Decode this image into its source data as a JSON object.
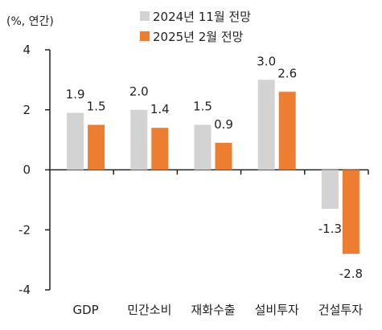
{
  "chart_data": {
    "type": "bar",
    "unit_label": "(%, 연간)",
    "categories": [
      "GDP",
      "민간소비",
      "재화수출",
      "설비투자",
      "건설투자"
    ],
    "series": [
      {
        "name": "2024년 11월 전망",
        "color": "#d3d3d3",
        "values": [
          1.9,
          2.0,
          1.5,
          3.0,
          -1.3
        ]
      },
      {
        "name": "2025년 2월 전망",
        "color": "#ed7d31",
        "values": [
          1.5,
          1.4,
          0.9,
          2.6,
          -2.8
        ]
      }
    ],
    "data_labels": [
      [
        "1.9",
        "2.0",
        "1.5",
        "3.0",
        "-1.3"
      ],
      [
        "1.5",
        "1.4",
        "0.9",
        "2.6",
        "-2.8"
      ]
    ],
    "ylim": [
      -4,
      4
    ],
    "yticks": [
      4,
      2,
      0,
      -2,
      -4
    ],
    "ytick_labels": [
      "4",
      "2",
      "0",
      "-2",
      "-4"
    ],
    "grid": false,
    "legend_position": "top"
  }
}
